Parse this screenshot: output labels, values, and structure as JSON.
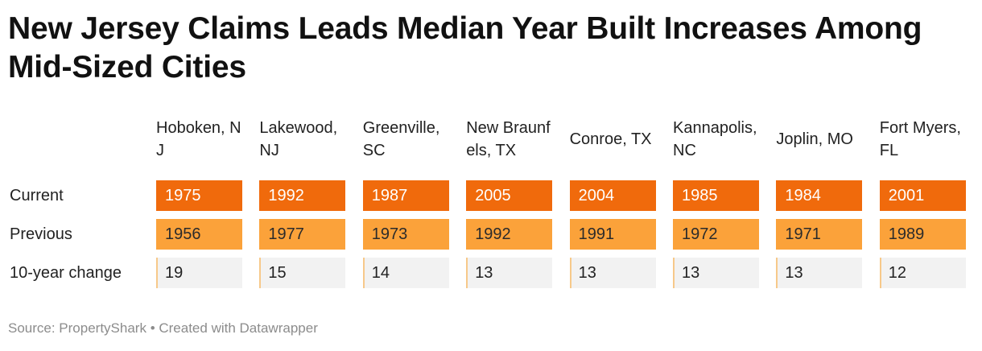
{
  "title": "New Jersey Claims Leads Median Year Built Increases Among Mid-Sized Cities",
  "source": "Source: PropertyShark • Created with Datawrapper",
  "colors": {
    "current": "#f06a0c",
    "previous": "#fba23a",
    "change": "#f2f2f2"
  },
  "chart_data": {
    "type": "table",
    "title": "New Jersey Claims Leads Median Year Built Increases Among Mid-Sized Cities",
    "columns": [
      "Hoboken, NJ",
      "Lakewood, NJ",
      "Greenville, SC",
      "New Braunfels, TX",
      "Conroe, TX",
      "Kannapolis, NC",
      "Joplin, MO",
      "Fort Myers, FL"
    ],
    "rows": [
      {
        "label": "Current",
        "values": [
          "1975",
          "1992",
          "1987",
          "2005",
          "2004",
          "1985",
          "1984",
          "2001"
        ]
      },
      {
        "label": "Previous",
        "values": [
          "1956",
          "1977",
          "1973",
          "1992",
          "1991",
          "1972",
          "1971",
          "1989"
        ]
      },
      {
        "label": "10-year change",
        "values": [
          "19",
          "15",
          "14",
          "13",
          "13",
          "13",
          "13",
          "12"
        ]
      }
    ]
  }
}
